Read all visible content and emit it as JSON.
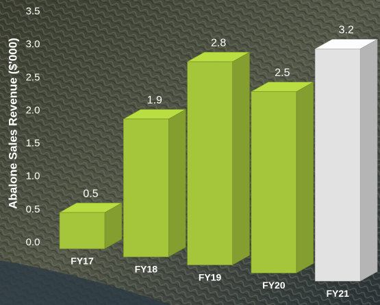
{
  "chart_data": {
    "type": "bar3d",
    "y_label": "Abalone Sales Revenue ($'000)",
    "categories": [
      "FY17",
      "FY18",
      "FY19",
      "FY20",
      "FY21"
    ],
    "values": [
      0.5,
      1.9,
      2.8,
      2.5,
      3.2
    ],
    "colors": [
      "#a5c63b",
      "#a5c63b",
      "#a5c63b",
      "#a5c63b",
      "#e2e2e2"
    ],
    "ylim": [
      0,
      3.5
    ],
    "yticks": [
      {
        "value": 0,
        "label": "0.0"
      },
      0.5,
      {
        "value": 1,
        "label": "1.0"
      },
      1.5,
      {
        "value": 2,
        "label": "2.0"
      },
      2.5,
      {
        "value": 3,
        "label": "3.0"
      },
      3.5
    ]
  }
}
